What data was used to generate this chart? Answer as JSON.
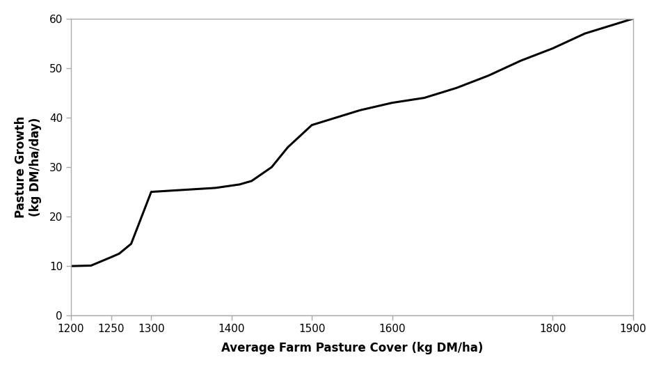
{
  "x": [
    1200,
    1225,
    1250,
    1260,
    1275,
    1300,
    1320,
    1350,
    1380,
    1410,
    1425,
    1450,
    1470,
    1500,
    1530,
    1560,
    1600,
    1640,
    1680,
    1720,
    1760,
    1800,
    1840,
    1870,
    1900
  ],
  "y": [
    10.0,
    10.1,
    11.8,
    12.5,
    14.5,
    25.0,
    25.2,
    25.5,
    25.8,
    26.5,
    27.2,
    30.0,
    34.0,
    38.5,
    40.0,
    41.5,
    43.0,
    44.0,
    46.0,
    48.5,
    51.5,
    54.0,
    57.0,
    58.5,
    60.0
  ],
  "line_color": "#000000",
  "line_width": 2.2,
  "xlabel": "Average Farm Pasture Cover (kg DM/ha)",
  "ylabel": "Pasture Growth\n(kg DM/ha/day)",
  "xlim": [
    1200,
    1900
  ],
  "ylim": [
    0,
    60
  ],
  "xticks": [
    1200,
    1250,
    1300,
    1400,
    1500,
    1600,
    1800,
    1900
  ],
  "yticks": [
    0,
    10,
    20,
    30,
    40,
    50,
    60
  ],
  "xlabel_fontsize": 12,
  "ylabel_fontsize": 12,
  "tick_fontsize": 11,
  "background_color": "#ffffff",
  "spine_color": "#aaaaaa",
  "border_color": "#aaaaaa"
}
